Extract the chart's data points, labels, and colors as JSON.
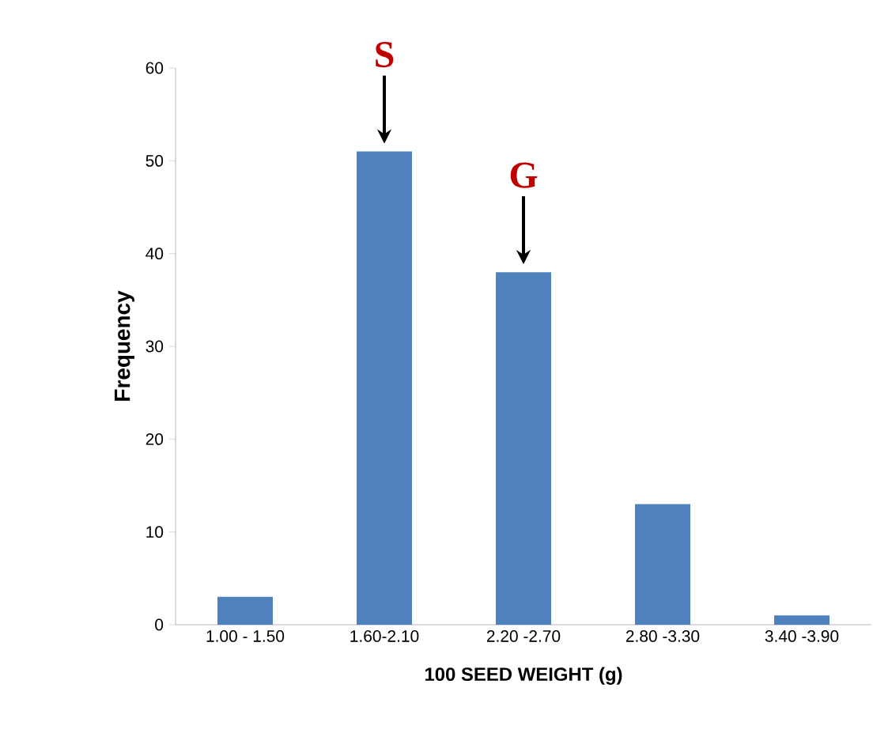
{
  "chart_data": {
    "type": "bar",
    "xlabel": "100 SEED WEIGHT (g)",
    "ylabel": "Frequency",
    "categories": [
      "1.00 - 1.50",
      "1.60-2.10",
      "2.20 -2.70",
      "2.80 -3.30",
      "3.40 -3.90"
    ],
    "values": [
      3,
      51,
      38,
      13,
      1
    ],
    "color": "#4f81bd",
    "ylim": [
      0,
      60
    ],
    "yticks": [
      0,
      10,
      20,
      30,
      40,
      50,
      60
    ],
    "grid": false,
    "annotations": [
      {
        "text": "S",
        "x": "1.60-2.10",
        "y": 51
      },
      {
        "text": "G",
        "x": "2.20 -2.70",
        "y": 38
      }
    ]
  }
}
